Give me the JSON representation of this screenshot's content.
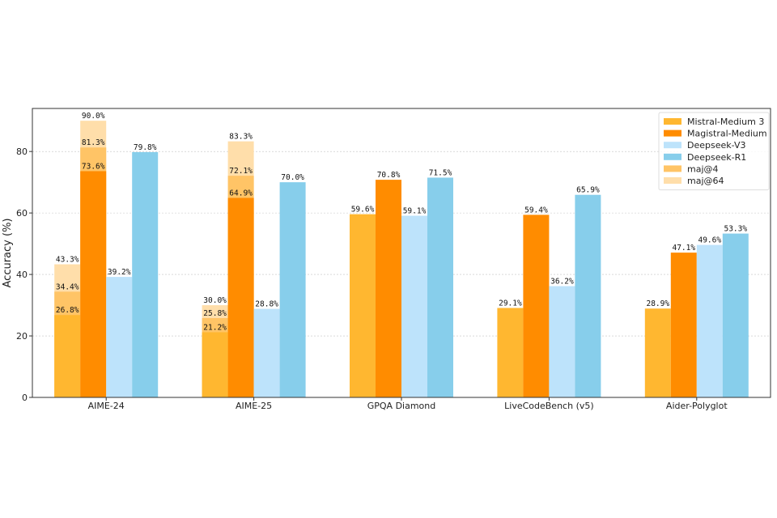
{
  "chart_data": {
    "type": "bar",
    "ylabel": "Accuracy (%)",
    "ylim": [
      0,
      94
    ],
    "yticks": [
      0,
      20,
      40,
      60,
      80
    ],
    "categories": [
      "AIME-24",
      "AIME-25",
      "GPQA Diamond",
      "LiveCodeBench (v5)",
      "Aider-Polyglot"
    ],
    "series": [
      {
        "name": "Mistral-Medium 3",
        "color": "#ffb730",
        "values": [
          26.8,
          21.2,
          59.6,
          29.1,
          28.9
        ],
        "labels": [
          "26.8%",
          "21.2%",
          "59.6%",
          "29.1%",
          "28.9%"
        ]
      },
      {
        "name": "Magistral-Medium",
        "color": "#ff8c00",
        "values": [
          73.6,
          64.9,
          70.8,
          59.4,
          47.1
        ],
        "labels": [
          "73.6%",
          "64.9%",
          "70.8%",
          "59.4%",
          "47.1%"
        ]
      },
      {
        "name": "Deepseek-V3",
        "color": "#bde3fb",
        "values": [
          39.2,
          28.8,
          59.1,
          36.2,
          49.6
        ],
        "labels": [
          "39.2%",
          "28.8%",
          "59.1%",
          "36.2%",
          "49.6%"
        ]
      },
      {
        "name": "Deepseek-R1",
        "color": "#87ceeb",
        "values": [
          79.8,
          70.0,
          71.5,
          65.9,
          53.3
        ],
        "labels": [
          "79.8%",
          "70.0%",
          "71.5%",
          "65.9%",
          "53.3%"
        ]
      }
    ],
    "stacked_extras": {
      "maj@4": {
        "name": "maj@4",
        "color": "#ffc466",
        "values": {
          "Mistral-Medium 3": [
            34.4,
            25.8,
            null,
            null,
            null
          ],
          "Magistral-Medium": [
            81.3,
            72.1,
            null,
            null,
            null
          ]
        },
        "labels": {
          "Mistral-Medium 3": [
            "34.4%",
            "25.8%",
            null,
            null,
            null
          ],
          "Magistral-Medium": [
            "81.3%",
            "72.1%",
            null,
            null,
            null
          ]
        }
      },
      "maj@64": {
        "name": "maj@64",
        "color": "#ffdeaa",
        "values": {
          "Mistral-Medium 3": [
            43.3,
            30.0,
            null,
            null,
            null
          ],
          "Magistral-Medium": [
            90.0,
            83.3,
            null,
            null,
            null
          ]
        },
        "labels": {
          "Mistral-Medium 3": [
            "43.3%",
            "30.0%",
            null,
            null,
            null
          ],
          "Magistral-Medium": [
            "90.0%",
            "83.3%",
            null,
            null,
            null
          ]
        }
      }
    },
    "legend": [
      {
        "label": "Mistral-Medium 3",
        "color": "#ffb730"
      },
      {
        "label": "Magistral-Medium",
        "color": "#ff8c00"
      },
      {
        "label": "Deepseek-V3",
        "color": "#bde3fb"
      },
      {
        "label": "Deepseek-R1",
        "color": "#87ceeb"
      },
      {
        "label": "maj@4",
        "color": "#ffc466"
      },
      {
        "label": "maj@64",
        "color": "#ffdeaa"
      }
    ],
    "legend_position": "top-right",
    "grid": true
  }
}
